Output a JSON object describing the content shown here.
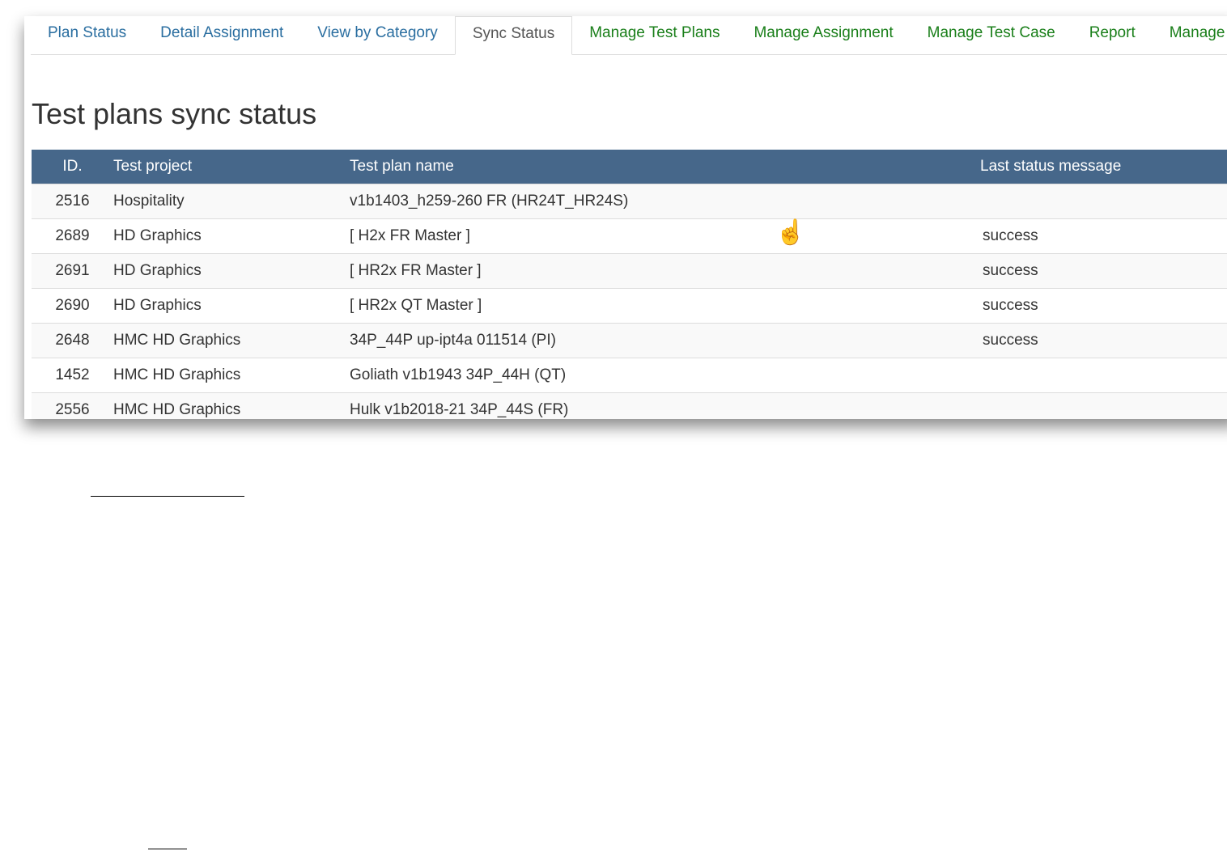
{
  "tabs": [
    {
      "label": "Plan Status",
      "color": "#2a6ea0"
    },
    {
      "label": "Detail Assignment",
      "color": "#2a6ea0"
    },
    {
      "label": "View by Category",
      "color": "#2a6ea0"
    },
    {
      "label": "Sync Status",
      "active": true
    },
    {
      "label": "Manage Test Plans",
      "color": "#1a7f1a"
    },
    {
      "label": "Manage Assignment",
      "color": "#1a7f1a"
    },
    {
      "label": "Manage Test Case",
      "color": "#1a7f1a"
    },
    {
      "label": "Report",
      "color": "#1a7f1a"
    },
    {
      "label": "Manage",
      "color": "#1a7f1a"
    }
  ],
  "page_title": "Test plans sync status",
  "table": {
    "headers": [
      "ID.",
      "Test project",
      "Test plan name",
      "Last status message"
    ],
    "header_color": "#46678a",
    "rows": [
      [
        "2516",
        "Hospitality",
        "v1b1403_h259-260 FR (HR24T_HR24S)",
        ""
      ],
      [
        "2689",
        "HD Graphics",
        "[ H2x FR Master ]",
        "success"
      ],
      [
        "2691",
        "HD Graphics",
        "[ HR2x FR Master ]",
        "success"
      ],
      [
        "2690",
        "HD Graphics",
        "[ HR2x QT Master ]",
        "success"
      ],
      [
        "2648",
        "HMC HD Graphics",
        "34P_44P up-ipt4a 011514 (PI)",
        "success"
      ],
      [
        "1452",
        "HMC HD Graphics",
        "Goliath v1b1943 34P_44H (QT)",
        ""
      ],
      [
        "2556",
        "HMC HD Graphics",
        "Hulk v1b2018-21 34P_44S (FR)",
        ""
      ]
    ]
  },
  "cursor_icon": "hand-pointer-icon"
}
